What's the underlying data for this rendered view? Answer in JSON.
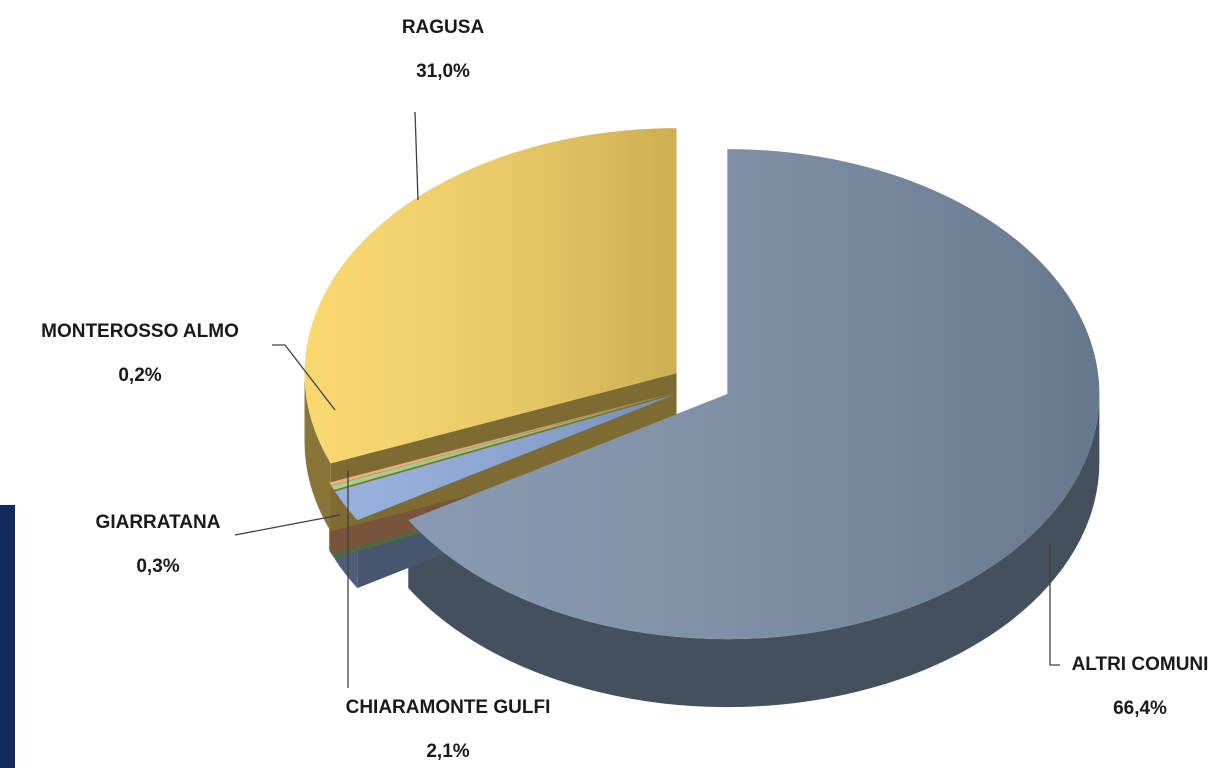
{
  "chart_data": {
    "type": "pie",
    "categories": [
      "ALTRI COMUNI",
      "CHIARAMONTE GULFI",
      "GIARRATANA",
      "MONTEROSSO ALMO",
      "RAGUSA"
    ],
    "values": [
      66.4,
      2.1,
      0.3,
      0.2,
      31.0
    ],
    "value_labels": [
      "66,4%",
      "2,1%",
      "0,3%",
      "0,2%",
      "31,0%"
    ],
    "colors": [
      "#7d91aa",
      "#8eaadb",
      "#9ccf7e",
      "#f2a878",
      "#f9d564"
    ]
  }
}
